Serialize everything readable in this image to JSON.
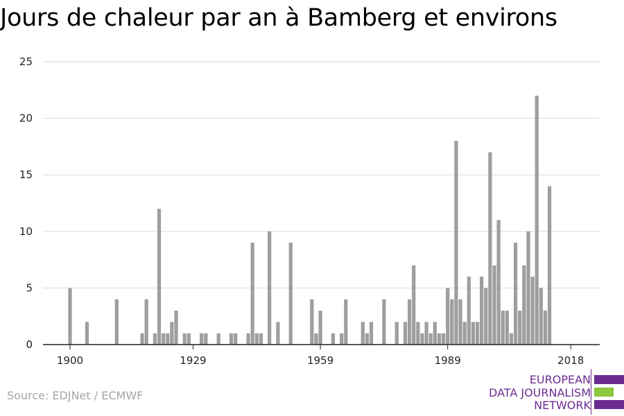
{
  "chart_data": {
    "type": "bar",
    "title": "Jours de chaleur par an à Bamberg et environs",
    "xlabel": "",
    "ylabel": "",
    "ylim": [
      0,
      25
    ],
    "xlim": [
      1894,
      2025
    ],
    "yticks": [
      0,
      5,
      10,
      15,
      20,
      25
    ],
    "xticks": [
      1900,
      1929,
      1959,
      1989,
      2018
    ],
    "grid": true,
    "bar_color": "#9e9e9e",
    "x": [
      1900,
      1904,
      1911,
      1917,
      1918,
      1920,
      1921,
      1922,
      1923,
      1924,
      1925,
      1927,
      1928,
      1931,
      1932,
      1935,
      1938,
      1939,
      1942,
      1943,
      1944,
      1945,
      1947,
      1949,
      1952,
      1957,
      1958,
      1959,
      1962,
      1964,
      1965,
      1969,
      1970,
      1971,
      1974,
      1977,
      1979,
      1980,
      1981,
      1982,
      1983,
      1984,
      1985,
      1986,
      1987,
      1988,
      1989,
      1990,
      1991,
      1992,
      1993,
      1994,
      1995,
      1996,
      1997,
      1998,
      1999,
      2000,
      2001,
      2002,
      2003,
      2004,
      2005,
      2006,
      2007,
      2008,
      2009,
      2010,
      2011,
      2012,
      2013,
      2014,
      2015,
      2016,
      2017,
      2018
    ],
    "values": [
      5,
      2,
      4,
      1,
      4,
      1,
      12,
      1,
      1,
      2,
      3,
      1,
      1,
      1,
      1,
      1,
      1,
      1,
      1,
      9,
      1,
      1,
      10,
      2,
      9,
      4,
      1,
      3,
      1,
      1,
      4,
      2,
      1,
      2,
      4,
      2,
      2,
      4,
      7,
      2,
      1,
      2,
      1,
      2,
      1,
      1,
      5,
      4,
      18,
      4,
      2,
      6,
      2,
      2,
      6,
      5,
      17,
      7,
      11,
      3,
      3,
      1,
      9,
      3,
      7,
      10,
      6,
      22,
      5,
      3,
      14,
      0,
      0,
      0,
      0,
      0
    ],
    "series_note": "",
    "source": "Source: EDJNet / ECMWF"
  },
  "logo": {
    "line1": "EUROPEAN",
    "line2": "DATA JOURNALISM",
    "line3": "NETWORK",
    "purple": "#6b2c91",
    "green": "#8dc63f"
  }
}
